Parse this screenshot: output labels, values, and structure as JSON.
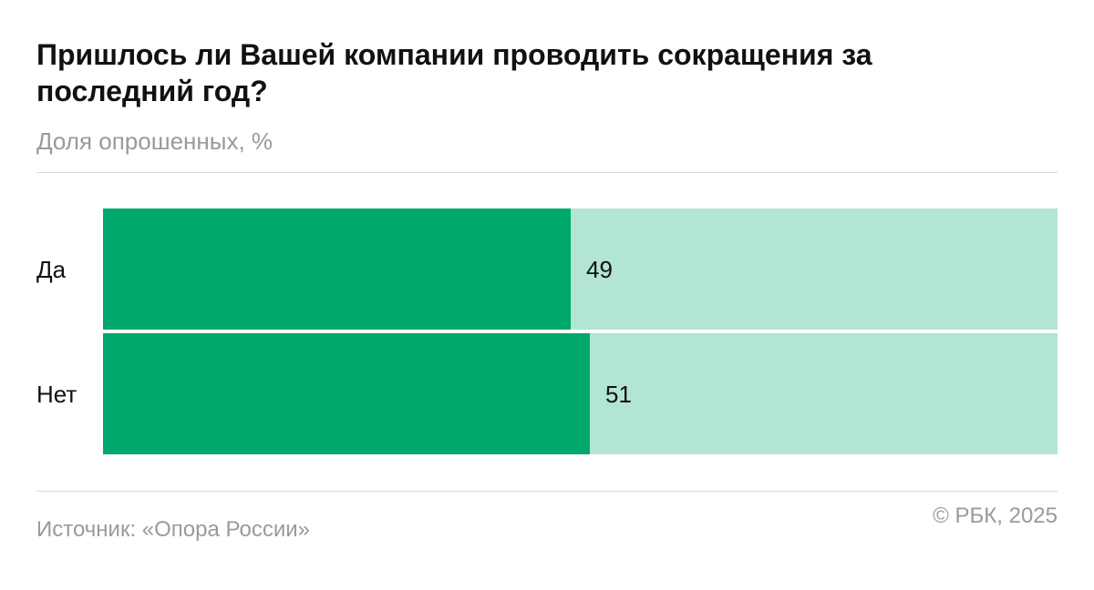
{
  "title": "Пришлось ли Вашей компании проводить сокращения за последний год?",
  "subtitle": "Доля опрошенных, %",
  "source": "Источник: «Опора России»",
  "copyright": "© РБК, 2025",
  "colors": {
    "fill": "#00a86b",
    "track": "#b3e5d3"
  },
  "chart_data": {
    "type": "bar",
    "orientation": "horizontal",
    "stacked_to": 100,
    "categories": [
      "Да",
      "Нет"
    ],
    "values": [
      49,
      51
    ],
    "title": "Пришлось ли Вашей компании проводить сокращения за последний год?",
    "subtitle": "Доля опрошенных, %",
    "xlim": [
      0,
      100
    ],
    "grid": false,
    "legend": "none"
  }
}
